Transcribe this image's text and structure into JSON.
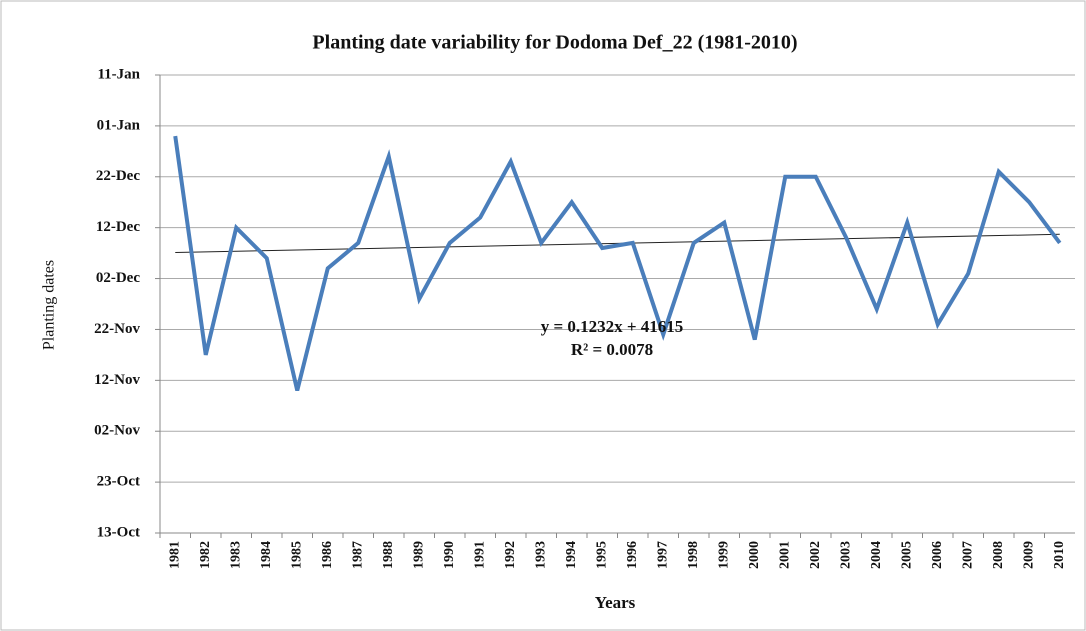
{
  "chart_data": {
    "type": "line",
    "title": "Planting date variability for Dodoma Def_22 (1981-2010)",
    "x_label": "Years",
    "y_label": "Planting dates",
    "categories": [
      "1981",
      "1982",
      "1983",
      "1984",
      "1985",
      "1986",
      "1987",
      "1988",
      "1989",
      "1990",
      "1991",
      "1992",
      "1993",
      "1994",
      "1995",
      "1996",
      "1997",
      "1998",
      "1999",
      "2000",
      "2001",
      "2002",
      "2003",
      "2004",
      "2005",
      "2006",
      "2007",
      "2008",
      "2009",
      "2010"
    ],
    "series": [
      {
        "name": "Planting date",
        "color": "#4a7ebb",
        "values": [
          41638,
          41595,
          41620,
          41614,
          41588,
          41612,
          41617,
          41634,
          41606,
          41617,
          41622,
          41633,
          41617,
          41625,
          41616,
          41617,
          41599,
          41617,
          41621,
          41598,
          41630,
          41630,
          41618,
          41604,
          41621,
          41601,
          41611,
          41631,
          41625,
          41617
        ]
      }
    ],
    "ylim": [
      41560,
      41650
    ],
    "yticks": [
      {
        "value": 41560,
        "label": "13-Oct"
      },
      {
        "value": 41570,
        "label": "23-Oct"
      },
      {
        "value": 41580,
        "label": "02-Nov"
      },
      {
        "value": 41590,
        "label": "12-Nov"
      },
      {
        "value": 41600,
        "label": "22-Nov"
      },
      {
        "value": 41610,
        "label": "02-Dec"
      },
      {
        "value": 41620,
        "label": "12-Dec"
      },
      {
        "value": 41630,
        "label": "22-Dec"
      },
      {
        "value": 41640,
        "label": "01-Jan"
      },
      {
        "value": 41650,
        "label": "11-Jan"
      }
    ],
    "grid": true,
    "trendline": {
      "slope": 0.1232,
      "intercept": 41615,
      "color": "#222222",
      "equation": "y = 0.1232x + 41615",
      "r_squared": "R² = 0.0078"
    }
  }
}
